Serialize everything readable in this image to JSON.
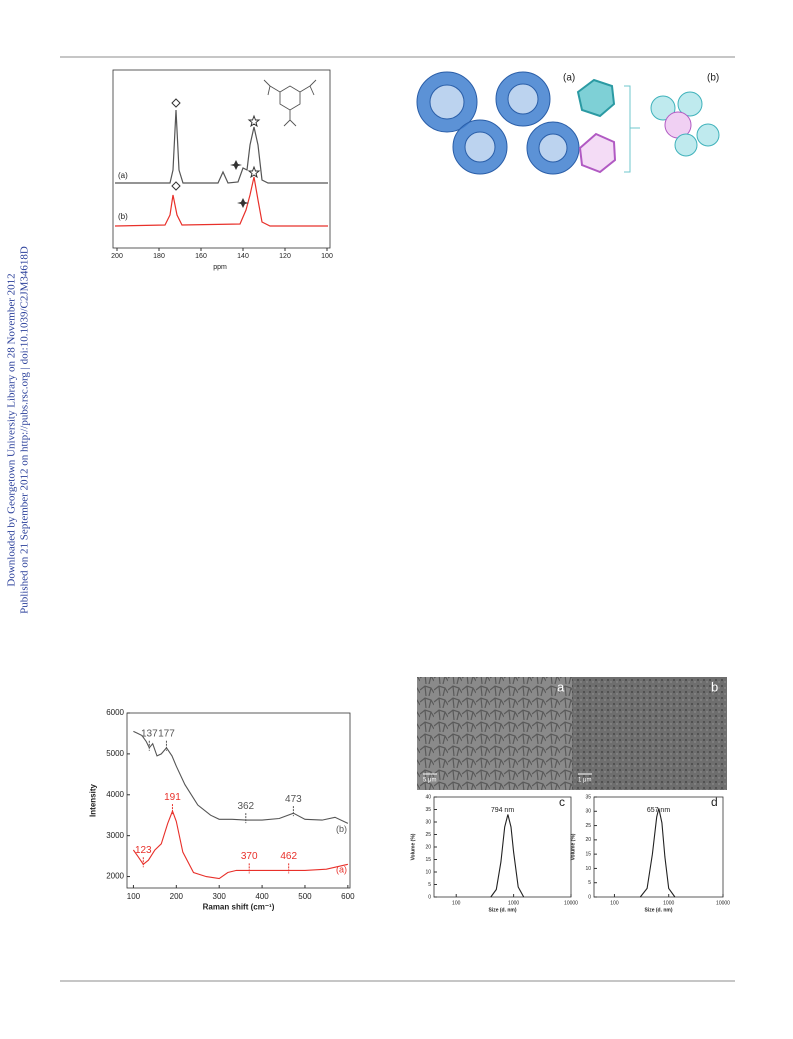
{
  "sidebar": {
    "line1": "Downloaded by Georgetown University Library on 28 November 2012",
    "line2": "Published on 21 September 2012 on http://pubs.rsc.org | doi:10.1039/C2JM34618D"
  },
  "figures": {
    "nmr": {
      "labels": [
        "(a)",
        "(b)"
      ],
      "xlabel": "ppm",
      "xlim": [
        200,
        100
      ],
      "xticks": [
        200,
        180,
        160,
        140,
        120,
        100
      ]
    },
    "framework": {
      "labels": [
        "(a)",
        "(b)"
      ]
    },
    "raman": {
      "type": "line",
      "xlabel": "Raman shift (cm⁻¹)",
      "ylabel": "Intensity",
      "xlim": [
        85,
        605
      ],
      "ylim": [
        1720,
        6000
      ],
      "xticks": [
        100,
        200,
        300,
        400,
        500,
        600
      ],
      "yticks": [
        2000,
        3000,
        4000,
        5000,
        6000
      ],
      "series": [
        {
          "name": "(b)",
          "color": "#555555",
          "x": [
            100,
            110,
            120,
            130,
            137,
            145,
            155,
            165,
            177,
            190,
            200,
            220,
            250,
            280,
            300,
            330,
            362,
            400,
            440,
            473,
            500,
            540,
            570,
            600
          ],
          "values": [
            5550,
            5500,
            5450,
            5300,
            5150,
            5250,
            4950,
            5000,
            5150,
            4950,
            4700,
            4250,
            3750,
            3500,
            3400,
            3400,
            3380,
            3380,
            3420,
            3550,
            3400,
            3380,
            3450,
            3300
          ],
          "peaks": [
            137,
            177,
            362,
            473
          ]
        },
        {
          "name": "(a)",
          "color": "#e8302a",
          "x": [
            100,
            110,
            123,
            135,
            150,
            165,
            180,
            191,
            200,
            215,
            240,
            270,
            300,
            320,
            340,
            370,
            400,
            430,
            462,
            500,
            550,
            600
          ],
          "values": [
            2650,
            2500,
            2300,
            2400,
            2650,
            2800,
            3300,
            3600,
            3350,
            2600,
            2100,
            2000,
            1950,
            2100,
            2150,
            2150,
            2150,
            2150,
            2150,
            2150,
            2180,
            2300
          ],
          "peaks": [
            123,
            191,
            370,
            462
          ]
        }
      ]
    },
    "sem": {
      "panels": [
        {
          "label": "a",
          "scale": "5 μm"
        },
        {
          "label": "b",
          "scale": "1 μm"
        }
      ]
    },
    "dls": [
      {
        "type": "line",
        "label": "c",
        "annotation": "794 nm",
        "xlabel": "Size (d. nm)",
        "ylabel": "Volume (%)",
        "log_x": true,
        "xlim": [
          41,
          10000
        ],
        "xticks": [
          100,
          1000,
          10000
        ],
        "ylim": [
          0,
          40
        ],
        "yticks": [
          0,
          5,
          10,
          15,
          20,
          25,
          30,
          35,
          40
        ],
        "x": [
          400,
          500,
          600,
          700,
          794,
          900,
          1000,
          1200,
          1500
        ],
        "values": [
          0,
          3,
          14,
          28,
          33,
          28,
          18,
          4,
          0
        ]
      },
      {
        "type": "line",
        "label": "d",
        "annotation": "657 nm",
        "xlabel": "Size (d. nm)",
        "ylabel": "Volume (%)",
        "log_x": true,
        "xlim": [
          42,
          10000
        ],
        "xticks": [
          100,
          1000,
          10000
        ],
        "ylim": [
          0,
          35
        ],
        "yticks": [
          0,
          5,
          10,
          15,
          20,
          25,
          30,
          35
        ],
        "x": [
          300,
          400,
          500,
          600,
          657,
          750,
          850,
          1000,
          1300
        ],
        "values": [
          0,
          3,
          15,
          28,
          31,
          26,
          14,
          3,
          0
        ]
      }
    ]
  }
}
